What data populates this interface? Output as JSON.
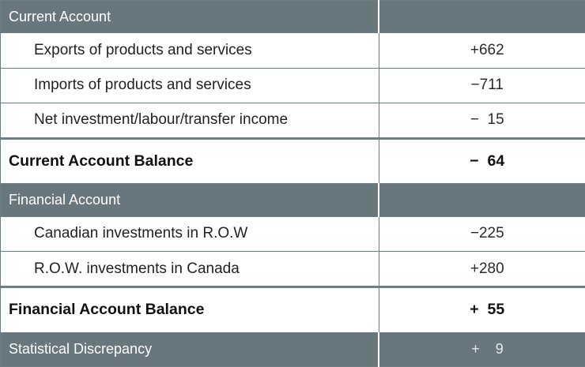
{
  "rows": [
    {
      "type": "section",
      "label": "Current Account",
      "value": ""
    },
    {
      "type": "item",
      "label": "Exports of products and services",
      "value": "+662"
    },
    {
      "type": "item",
      "label": "Imports of products and services",
      "value": "−711"
    },
    {
      "type": "item",
      "label": "Net investment/labour/transfer income",
      "value": "−  15"
    },
    {
      "type": "total",
      "label": "Current Account Balance",
      "value": "−  64"
    },
    {
      "type": "section",
      "label": "Financial Account",
      "value": ""
    },
    {
      "type": "item",
      "label": "Canadian investments in R.O.W",
      "value": "−225"
    },
    {
      "type": "item",
      "label": "R.O.W. investments in Canada",
      "value": "+280"
    },
    {
      "type": "total",
      "label": "Financial Account Balance",
      "value": "+  55"
    },
    {
      "type": "final",
      "label": "Statistical Discrepancy",
      "value": "+    9"
    }
  ]
}
